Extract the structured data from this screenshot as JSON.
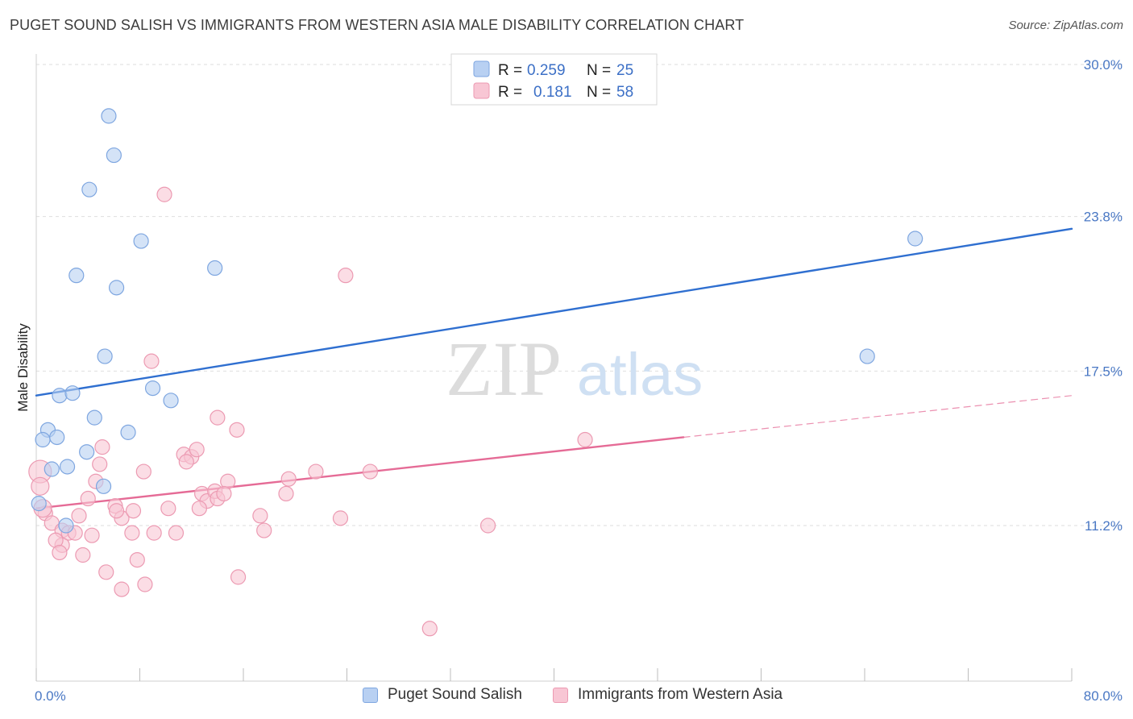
{
  "title": "PUGET SOUND SALISH VS IMMIGRANTS FROM WESTERN ASIA MALE DISABILITY CORRELATION CHART",
  "source": "Source: ZipAtlas.com",
  "watermark": {
    "zip": "ZIP",
    "atlas": "atlas"
  },
  "colors": {
    "blue_fill": "#b8d0f2",
    "blue_stroke": "#7ea6e0",
    "blue_line": "#2f6fd0",
    "pink_fill": "#f8c6d4",
    "pink_stroke": "#ec9ab2",
    "pink_line": "#e56b96",
    "tick_text": "#4a78c4",
    "grid": "#dedede"
  },
  "legend": {
    "rows": [
      {
        "r_label": "R =",
        "r_value": "0.259",
        "n_label": "N =",
        "n_value": "25"
      },
      {
        "r_label": "R =",
        "r_value": "0.181",
        "n_label": "N =",
        "n_value": "58"
      }
    ]
  },
  "bottom_legend": [
    "Puget Sound Salish",
    "Immigrants from Western Asia"
  ],
  "chart_data": {
    "type": "scatter",
    "title": "PUGET SOUND SALISH VS IMMIGRANTS FROM WESTERN ASIA MALE DISABILITY CORRELATION CHART",
    "xlabel": "",
    "ylabel": "Male Disability",
    "xlim": [
      0,
      80
    ],
    "ylim": [
      6,
      31
    ],
    "x_tick_labels": [
      "0.0%",
      "80.0%"
    ],
    "y_ticks": [
      11.2,
      17.5,
      23.8,
      30.0
    ],
    "y_tick_labels": [
      "11.2%",
      "17.5%",
      "23.8%",
      "30.0%"
    ],
    "grid": true,
    "legend_position": "top-center",
    "series": [
      {
        "name": "Puget Sound Salish",
        "color": "#b8d0f2",
        "points": [
          [
            5.6,
            27.9
          ],
          [
            6.0,
            26.3
          ],
          [
            4.1,
            24.9
          ],
          [
            8.1,
            22.8
          ],
          [
            3.1,
            21.4
          ],
          [
            6.2,
            20.9
          ],
          [
            13.8,
            21.7
          ],
          [
            5.3,
            18.1
          ],
          [
            1.8,
            16.5
          ],
          [
            2.8,
            16.6
          ],
          [
            9.0,
            16.8
          ],
          [
            10.4,
            16.3
          ],
          [
            4.5,
            15.6
          ],
          [
            0.9,
            15.1
          ],
          [
            0.5,
            14.7
          ],
          [
            1.6,
            14.8
          ],
          [
            7.1,
            15.0
          ],
          [
            3.9,
            14.2
          ],
          [
            2.4,
            13.6
          ],
          [
            1.2,
            13.5
          ],
          [
            5.2,
            12.8
          ],
          [
            0.2,
            12.1
          ],
          [
            2.3,
            11.2
          ],
          [
            67.9,
            22.9
          ],
          [
            64.2,
            18.1
          ]
        ]
      },
      {
        "name": "Immigrants from Western Asia",
        "color": "#f8c6d4",
        "points": [
          [
            9.9,
            24.7
          ],
          [
            23.9,
            21.4
          ],
          [
            8.9,
            17.9
          ],
          [
            14.0,
            15.6
          ],
          [
            15.5,
            15.1
          ],
          [
            11.4,
            14.1
          ],
          [
            12.0,
            14.0
          ],
          [
            12.4,
            14.3
          ],
          [
            11.6,
            13.8
          ],
          [
            5.1,
            14.4
          ],
          [
            4.9,
            13.7
          ],
          [
            8.3,
            13.4
          ],
          [
            19.5,
            13.1
          ],
          [
            21.6,
            13.4
          ],
          [
            25.8,
            13.4
          ],
          [
            14.8,
            13.0
          ],
          [
            4.6,
            13.0
          ],
          [
            12.8,
            12.5
          ],
          [
            13.2,
            12.2
          ],
          [
            13.8,
            12.6
          ],
          [
            19.3,
            12.5
          ],
          [
            4.0,
            12.3
          ],
          [
            6.1,
            12.0
          ],
          [
            10.2,
            11.9
          ],
          [
            12.6,
            11.9
          ],
          [
            14.0,
            12.3
          ],
          [
            14.5,
            12.5
          ],
          [
            6.6,
            11.5
          ],
          [
            7.5,
            11.8
          ],
          [
            6.2,
            11.8
          ],
          [
            3.3,
            11.6
          ],
          [
            17.3,
            11.6
          ],
          [
            23.5,
            11.5
          ],
          [
            34.9,
            11.2
          ],
          [
            0.7,
            11.7
          ],
          [
            1.2,
            11.3
          ],
          [
            2.0,
            11.0
          ],
          [
            2.5,
            10.9
          ],
          [
            3.0,
            10.9
          ],
          [
            4.3,
            10.8
          ],
          [
            7.4,
            10.9
          ],
          [
            9.1,
            10.9
          ],
          [
            10.8,
            10.9
          ],
          [
            17.6,
            11.0
          ],
          [
            2.0,
            10.4
          ],
          [
            1.5,
            10.6
          ],
          [
            1.8,
            10.1
          ],
          [
            3.6,
            10.0
          ],
          [
            7.8,
            9.8
          ],
          [
            5.4,
            9.3
          ],
          [
            6.6,
            8.6
          ],
          [
            8.4,
            8.8
          ],
          [
            15.6,
            9.1
          ],
          [
            30.4,
            7.0
          ],
          [
            42.4,
            14.7
          ],
          [
            0.3,
            13.4
          ],
          [
            0.3,
            12.8
          ],
          [
            0.5,
            11.9
          ]
        ]
      }
    ],
    "trend_lines": [
      {
        "series": "Puget Sound Salish",
        "x": [
          0,
          80
        ],
        "y": [
          16.5,
          23.3
        ],
        "style": "solid"
      },
      {
        "series": "Immigrants from Western Asia",
        "x": [
          0,
          50
        ],
        "y": [
          11.9,
          14.8
        ],
        "style": "solid"
      },
      {
        "series": "Immigrants from Western Asia",
        "x": [
          50,
          80
        ],
        "y": [
          14.8,
          16.5
        ],
        "style": "dashed"
      }
    ]
  }
}
